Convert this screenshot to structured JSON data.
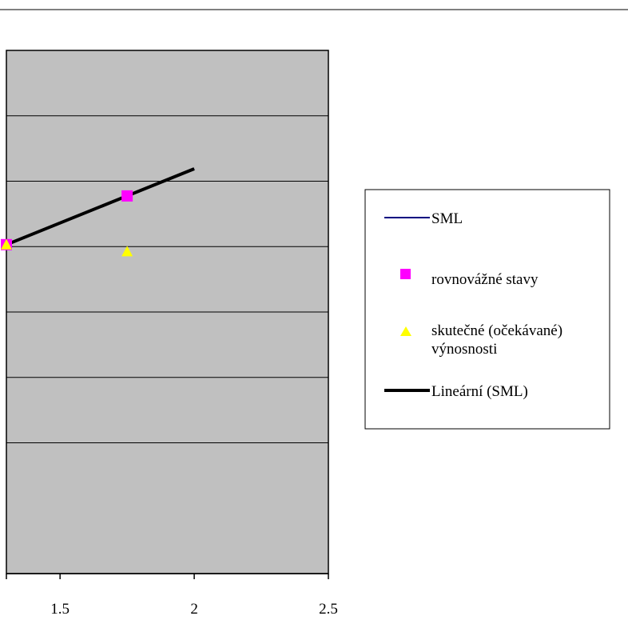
{
  "chart_data": {
    "type": "scatter",
    "title": "",
    "xlabel": "",
    "ylabel": "",
    "xlim": [
      1.3,
      2.5
    ],
    "ylim": [
      -0.02,
      0.14
    ],
    "x_ticks": [
      {
        "value": 1.5,
        "label": "1.5"
      },
      {
        "value": 2,
        "label": "2"
      },
      {
        "value": 2.5,
        "label": "2.5"
      }
    ],
    "y_gridlines": [
      0.12,
      0.1,
      0.08,
      0.06,
      0.04,
      0.02
    ],
    "plot_background": "#c0c0c0",
    "grid": true,
    "legend_position": "right",
    "series": [
      {
        "name": "SML",
        "type": "line",
        "color": "#000080",
        "x": [
          1.3,
          2.0
        ],
        "y": [
          0.0806,
          0.1038
        ]
      },
      {
        "name": "rovnovážné stavy",
        "type": "marker",
        "marker": "square",
        "color": "#ff00ff",
        "x": [
          1.3,
          1.75
        ],
        "y": [
          0.0806,
          0.0955
        ]
      },
      {
        "name": "skutečné (očekávané) výnosnosti",
        "type": "marker",
        "marker": "triangle",
        "color": "#ffff00",
        "x": [
          1.3,
          1.75
        ],
        "y": [
          0.0806,
          0.0785
        ]
      },
      {
        "name": "Lineární (SML)",
        "type": "trendline",
        "color": "#000000",
        "x": [
          1.3,
          2.0
        ],
        "y": [
          0.0806,
          0.1038
        ]
      }
    ]
  },
  "legend": {
    "items": [
      {
        "label": "SML",
        "kind": "line",
        "color": "#000080"
      },
      {
        "label": "rovnovážné stavy",
        "kind": "square",
        "color": "#ff00ff"
      },
      {
        "label": "skutečné (očekávané)",
        "label2": "výnosnosti",
        "kind": "triangle",
        "color": "#ffff00"
      },
      {
        "label": "Lineární (SML)",
        "kind": "thickline",
        "color": "#000000"
      }
    ]
  }
}
